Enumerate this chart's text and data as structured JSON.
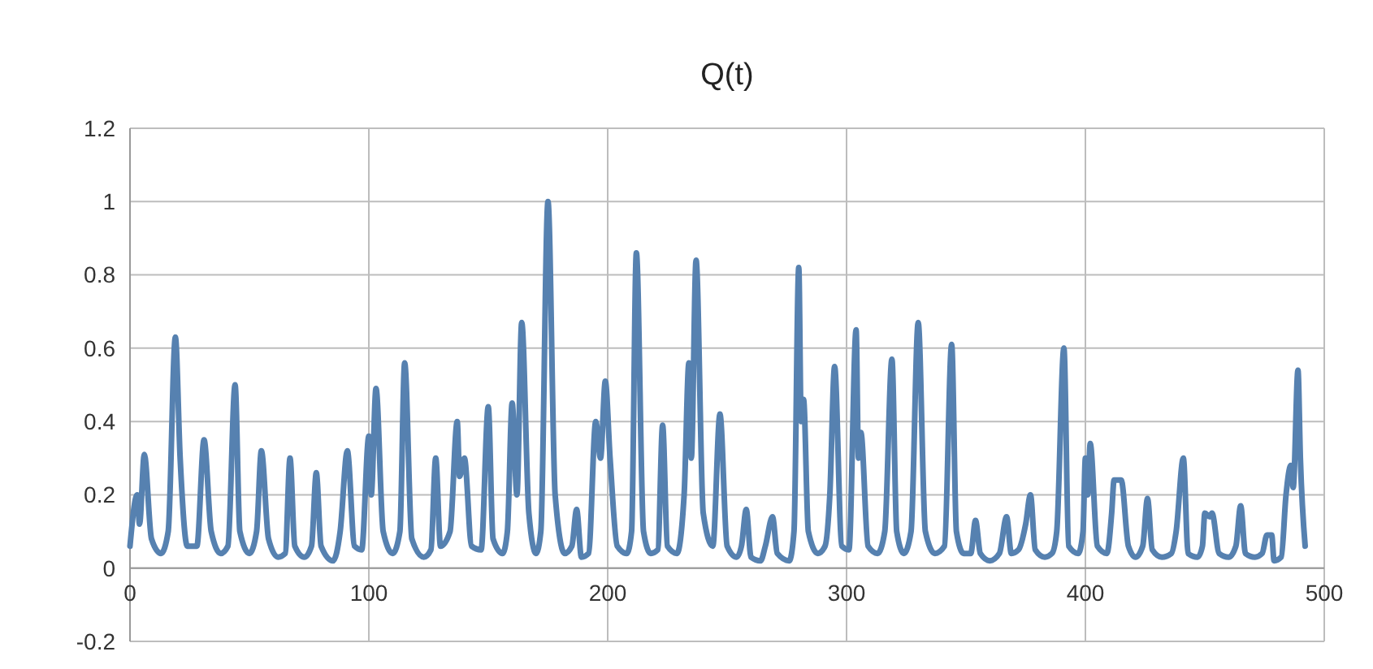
{
  "chart_data": {
    "type": "line",
    "title": "Q(t)",
    "x": [
      0,
      3,
      4,
      6,
      9,
      13,
      16,
      19,
      21,
      24,
      28,
      31,
      34,
      38,
      41,
      44,
      46,
      50,
      53,
      55,
      58,
      62,
      65,
      67,
      69,
      73,
      76,
      78,
      80,
      85,
      88,
      91,
      94,
      97,
      100,
      101,
      103,
      106,
      110,
      113,
      115,
      118,
      123,
      126,
      128,
      130,
      134,
      137,
      138,
      140,
      143,
      147,
      150,
      152,
      156,
      158,
      160,
      162,
      164,
      167,
      170,
      172,
      175,
      178,
      182,
      185,
      187,
      189,
      192,
      195,
      197,
      199,
      201,
      204,
      208,
      210,
      212,
      215,
      218,
      221,
      223,
      225,
      229,
      232,
      234,
      235,
      237,
      240,
      244,
      247,
      250,
      254,
      256,
      258,
      260,
      264,
      266,
      269,
      271,
      276,
      278,
      280,
      281,
      282,
      284,
      288,
      291,
      293,
      295,
      298,
      301,
      304,
      305,
      306,
      309,
      313,
      316,
      319,
      321,
      324,
      327,
      330,
      333,
      337,
      341,
      344,
      346,
      349,
      352,
      354,
      356,
      360,
      364,
      367,
      369,
      372,
      375,
      377,
      379,
      383,
      386,
      388,
      391,
      393,
      397,
      399,
      400,
      401,
      402,
      405,
      409,
      411,
      412,
      415,
      418,
      421,
      424,
      426,
      428,
      432,
      436,
      438,
      441,
      443,
      447,
      449,
      450,
      452,
      453,
      456,
      460,
      463,
      465,
      467,
      471,
      474,
      476,
      478,
      479,
      482,
      484,
      486,
      487,
      489,
      490,
      492
    ],
    "series": [
      {
        "color": "#5681b0",
        "values": [
          0.06,
          0.2,
          0.12,
          0.31,
          0.08,
          0.04,
          0.1,
          0.63,
          0.3,
          0.06,
          0.06,
          0.35,
          0.1,
          0.04,
          0.06,
          0.5,
          0.1,
          0.04,
          0.1,
          0.32,
          0.08,
          0.03,
          0.04,
          0.3,
          0.06,
          0.03,
          0.06,
          0.26,
          0.06,
          0.02,
          0.1,
          0.32,
          0.06,
          0.05,
          0.36,
          0.2,
          0.49,
          0.1,
          0.04,
          0.1,
          0.56,
          0.08,
          0.03,
          0.05,
          0.3,
          0.06,
          0.1,
          0.4,
          0.25,
          0.3,
          0.06,
          0.05,
          0.44,
          0.08,
          0.04,
          0.1,
          0.45,
          0.2,
          0.67,
          0.15,
          0.04,
          0.1,
          1.0,
          0.2,
          0.04,
          0.06,
          0.16,
          0.03,
          0.04,
          0.4,
          0.3,
          0.51,
          0.3,
          0.06,
          0.04,
          0.1,
          0.86,
          0.1,
          0.04,
          0.05,
          0.39,
          0.06,
          0.04,
          0.2,
          0.56,
          0.3,
          0.84,
          0.15,
          0.06,
          0.42,
          0.06,
          0.03,
          0.06,
          0.16,
          0.03,
          0.02,
          0.06,
          0.14,
          0.04,
          0.02,
          0.1,
          0.82,
          0.4,
          0.46,
          0.1,
          0.04,
          0.06,
          0.2,
          0.55,
          0.06,
          0.05,
          0.65,
          0.3,
          0.37,
          0.06,
          0.04,
          0.1,
          0.57,
          0.1,
          0.04,
          0.1,
          0.67,
          0.1,
          0.04,
          0.06,
          0.61,
          0.1,
          0.04,
          0.04,
          0.13,
          0.04,
          0.02,
          0.04,
          0.14,
          0.04,
          0.05,
          0.12,
          0.2,
          0.05,
          0.03,
          0.04,
          0.1,
          0.6,
          0.06,
          0.04,
          0.1,
          0.3,
          0.2,
          0.34,
          0.06,
          0.04,
          0.15,
          0.24,
          0.24,
          0.06,
          0.03,
          0.06,
          0.19,
          0.05,
          0.03,
          0.04,
          0.1,
          0.3,
          0.04,
          0.03,
          0.06,
          0.15,
          0.14,
          0.15,
          0.04,
          0.03,
          0.06,
          0.17,
          0.04,
          0.03,
          0.04,
          0.09,
          0.09,
          0.02,
          0.03,
          0.2,
          0.28,
          0.22,
          0.54,
          0.3,
          0.06
        ]
      }
    ],
    "xlim": [
      0,
      500
    ],
    "xticks": [
      0,
      100,
      200,
      300,
      400,
      500
    ],
    "ylim": [
      -0.2,
      1.2
    ],
    "yticks": [
      -0.2,
      0,
      0.2,
      0.4,
      0.6,
      0.8,
      1,
      1.2
    ],
    "grid": true,
    "marker": "none",
    "line_style": "solid"
  }
}
